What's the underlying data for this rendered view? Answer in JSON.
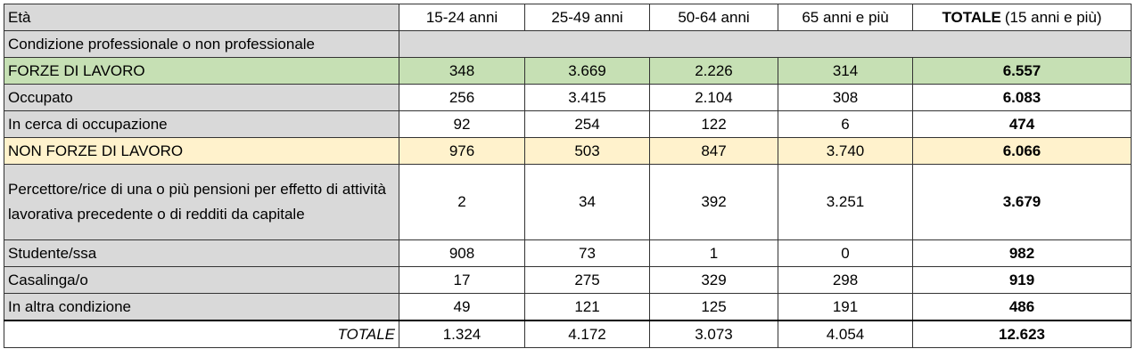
{
  "table": {
    "header": {
      "label": "Età",
      "columns": [
        "15-24 anni",
        "25-49 anni",
        "50-64 anni",
        "65 anni e più"
      ],
      "total": "TOTALE",
      "total_note": "(15 anni e più)"
    },
    "section": "Condizione professionale o non professionale",
    "rows": [
      {
        "label": "FORZE DI LAVORO",
        "values": [
          "348",
          "3.669",
          "2.226",
          "314",
          "6.557"
        ]
      },
      {
        "label": "Occupato",
        "values": [
          "256",
          "3.415",
          "2.104",
          "308",
          "6.083"
        ]
      },
      {
        "label": "In cerca di occupazione",
        "values": [
          "92",
          "254",
          "122",
          "6",
          "474"
        ]
      },
      {
        "label": "NON FORZE DI LAVORO",
        "values": [
          "976",
          "503",
          "847",
          "3.740",
          "6.066"
        ]
      },
      {
        "label": "Percettore/rice di una o più pensioni per effetto di attività lavorativa precedente o di redditi da capitale",
        "values": [
          "2",
          "34",
          "392",
          "3.251",
          "3.679"
        ]
      },
      {
        "label": "Studente/ssa",
        "values": [
          "908",
          "73",
          "1",
          "0",
          "982"
        ]
      },
      {
        "label": "Casalinga/o",
        "values": [
          "17",
          "275",
          "329",
          "298",
          "919"
        ]
      },
      {
        "label": "In altra condizione",
        "values": [
          "49",
          "121",
          "125",
          "191",
          "486"
        ]
      }
    ],
    "total_row": {
      "label": "TOTALE",
      "values": [
        "1.324",
        "4.172",
        "3.073",
        "4.054",
        "12.623"
      ]
    }
  }
}
